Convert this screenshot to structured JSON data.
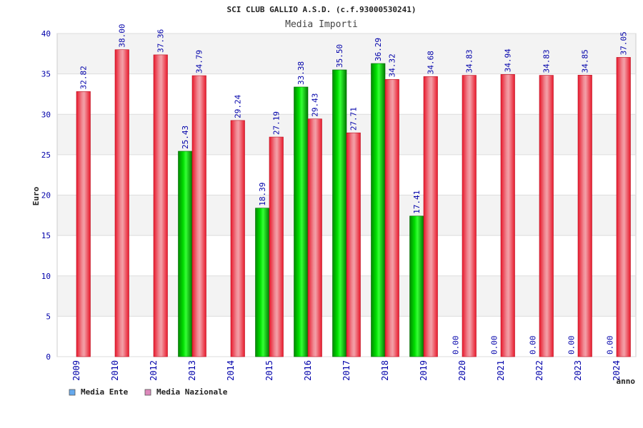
{
  "chart_data": {
    "type": "bar",
    "title": "SCI CLUB GALLIO A.S.D. (c.f.93000530241)",
    "subtitle": "Media Importi",
    "xlabel": "anno",
    "ylabel": "Euro",
    "ylim": [
      0,
      40
    ],
    "yticks": [
      0,
      5,
      10,
      15,
      20,
      25,
      30,
      35,
      40
    ],
    "grid": true,
    "legend_position": "bottom-left",
    "categories": [
      "2009",
      "2010",
      "2012",
      "2013",
      "2014",
      "2015",
      "2016",
      "2017",
      "2018",
      "2019",
      "2020",
      "2021",
      "2022",
      "2023",
      "2024"
    ],
    "series": [
      {
        "name": "Media Ente",
        "color": "#00b400",
        "legend_color": "#66aaee",
        "values": [
          null,
          null,
          null,
          25.43,
          null,
          18.39,
          33.38,
          35.5,
          36.29,
          17.41,
          0.0,
          0.0,
          0.0,
          0.0,
          0.0
        ],
        "labels": [
          "",
          "",
          "",
          "25.43",
          "",
          "18.39",
          "33.38",
          "35.50",
          "36.29",
          "17.41",
          "0.00",
          "0.00",
          "0.00",
          "0.00",
          "0.00"
        ]
      },
      {
        "name": "Media Nazionale",
        "color": "#e8192c",
        "legend_color": "#dd88bb",
        "values": [
          32.82,
          38.0,
          37.36,
          34.79,
          29.24,
          27.19,
          29.43,
          27.71,
          34.32,
          34.68,
          34.83,
          34.94,
          34.83,
          34.85,
          37.05
        ],
        "labels": [
          "32.82",
          "38.00",
          "37.36",
          "34.79",
          "29.24",
          "27.19",
          "29.43",
          "27.71",
          "34.32",
          "34.68",
          "34.83",
          "34.94",
          "34.83",
          "34.85",
          "37.05"
        ]
      }
    ]
  }
}
